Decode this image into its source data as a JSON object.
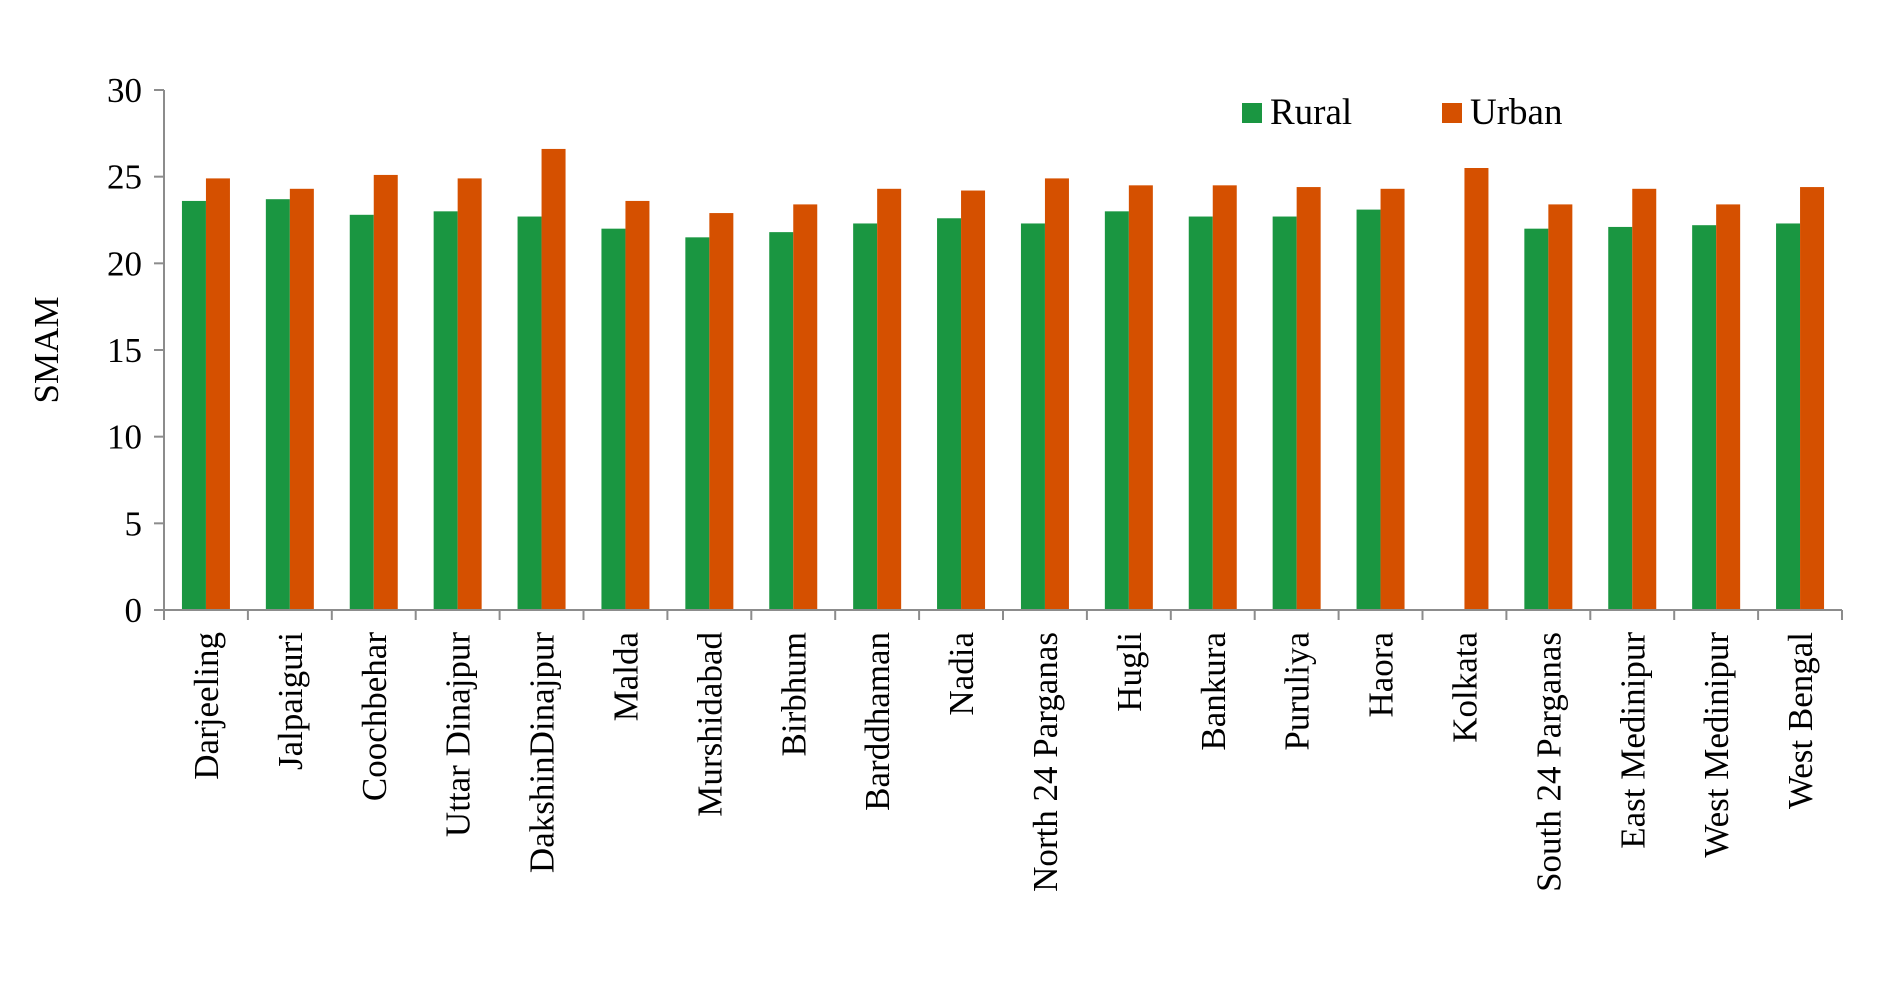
{
  "chart_data": {
    "type": "bar",
    "title": "",
    "xlabel": "",
    "ylabel": "SMAM",
    "ylim": [
      0,
      30
    ],
    "yticks": [
      0,
      5,
      10,
      15,
      20,
      25,
      30
    ],
    "grid": false,
    "legend": "top-right",
    "categories": [
      "Darjeeling",
      "Jalpaiguri",
      "Coochbehar",
      "Uttar Dinajpur",
      "DakshinDinajpur",
      "Malda",
      "Murshidabad",
      "Birbhum",
      "Barddhaman",
      "Nadia",
      "North 24 Parganas",
      "Hugli",
      "Bankura",
      "Puruliya",
      "Haora",
      "Kolkata",
      "South 24 Parganas",
      "East Medinipur",
      "West Medinipur",
      "West Bengal"
    ],
    "series": [
      {
        "name": "Rural",
        "color": "#1a9641",
        "values": [
          23.6,
          23.7,
          22.8,
          23.0,
          22.7,
          22.0,
          21.5,
          21.8,
          22.3,
          22.6,
          22.3,
          23.0,
          22.7,
          22.7,
          23.1,
          null,
          22.0,
          22.1,
          22.2,
          22.3
        ]
      },
      {
        "name": "Urban",
        "color": "#d55000",
        "values": [
          24.9,
          24.3,
          25.1,
          24.9,
          26.6,
          23.6,
          22.9,
          23.4,
          24.3,
          24.2,
          24.9,
          24.5,
          24.5,
          24.4,
          24.3,
          25.5,
          23.4,
          24.3,
          23.4,
          24.4
        ]
      }
    ]
  }
}
